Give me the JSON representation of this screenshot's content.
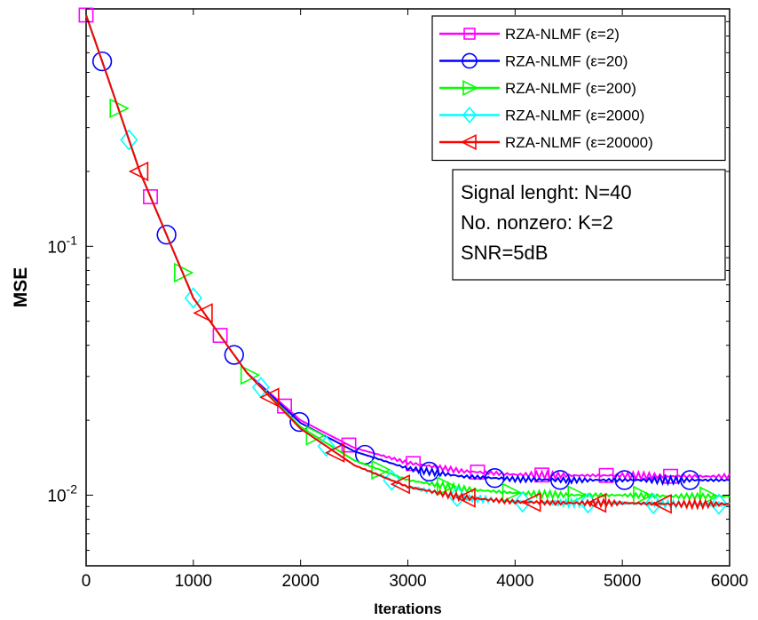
{
  "chart_data": {
    "type": "line",
    "xlabel": "Iterations",
    "ylabel": "MSE",
    "xlim": [
      0,
      6000
    ],
    "ylim": [
      0.0052,
      0.9
    ],
    "yscale": "log",
    "x_ticks": [
      0,
      1000,
      2000,
      3000,
      4000,
      5000,
      6000
    ],
    "x_tick_labels": [
      "0",
      "1000",
      "2000",
      "3000",
      "4000",
      "5000",
      "6000"
    ],
    "y_ticks": [
      {
        "value": 0.1,
        "base": "10",
        "exp": "-1"
      },
      {
        "value": 0.01,
        "base": "10",
        "exp": "-2"
      }
    ],
    "grid": false,
    "legend_position": "top-right",
    "series": [
      {
        "name": "RZA-NLMF (ε=2)",
        "color": "#ff00ff",
        "marker": "square",
        "x": [
          0,
          200,
          500,
          1000,
          1500,
          2000,
          2500,
          3000,
          3500,
          4000,
          4500,
          5000,
          5500,
          6000
        ],
        "y": [
          0.85,
          0.48,
          0.2,
          0.062,
          0.031,
          0.02,
          0.0155,
          0.0135,
          0.0125,
          0.0121,
          0.012,
          0.012,
          0.0119,
          0.0119
        ],
        "marker_x": [
          0,
          600,
          1250,
          1850,
          2450,
          3050,
          3650,
          4250,
          4850,
          5450
        ]
      },
      {
        "name": "RZA-NLMF (ε=20)",
        "color": "#0000ff",
        "marker": "circle",
        "x": [
          0,
          200,
          500,
          1000,
          1500,
          2000,
          2500,
          3000,
          3500,
          4000,
          4500,
          5000,
          5500,
          6000
        ],
        "y": [
          0.85,
          0.48,
          0.2,
          0.062,
          0.031,
          0.0195,
          0.015,
          0.0128,
          0.0119,
          0.0116,
          0.0115,
          0.0115,
          0.0115,
          0.0115
        ],
        "marker_x": [
          150,
          750,
          1380,
          1990,
          2600,
          3200,
          3810,
          4420,
          5020,
          5630
        ]
      },
      {
        "name": "RZA-NLMF (ε=200)",
        "color": "#00ff00",
        "marker": "triangle-right",
        "x": [
          0,
          200,
          500,
          1000,
          1500,
          2000,
          2500,
          3000,
          3500,
          4000,
          4500,
          5000,
          5500,
          6000
        ],
        "y": [
          0.85,
          0.48,
          0.2,
          0.062,
          0.031,
          0.0188,
          0.0138,
          0.0115,
          0.0106,
          0.0102,
          0.01,
          0.01,
          0.0099,
          0.0099
        ],
        "marker_x": [
          300,
          900,
          1520,
          2130,
          2740,
          3350,
          3960,
          4570,
          5180,
          5800
        ]
      },
      {
        "name": "RZA-NLMF (ε=2000)",
        "color": "#00ffff",
        "marker": "diamond",
        "x": [
          0,
          200,
          500,
          1000,
          1500,
          2000,
          2500,
          3000,
          3500,
          4000,
          4500,
          5000,
          5500,
          6000
        ],
        "y": [
          0.85,
          0.48,
          0.2,
          0.062,
          0.031,
          0.0185,
          0.0132,
          0.0108,
          0.0098,
          0.0094,
          0.0093,
          0.0093,
          0.0092,
          0.0092
        ],
        "marker_x": [
          400,
          1000,
          1630,
          2240,
          2850,
          3460,
          4070,
          4680,
          5290,
          5900
        ]
      },
      {
        "name": "RZA-NLMF (ε=20000)",
        "color": "#ff0000",
        "marker": "triangle-left",
        "x": [
          0,
          200,
          500,
          1000,
          1500,
          2000,
          2500,
          3000,
          3500,
          4000,
          4500,
          5000,
          5500,
          6000
        ],
        "y": [
          0.85,
          0.48,
          0.2,
          0.062,
          0.031,
          0.0185,
          0.0132,
          0.0108,
          0.0098,
          0.0094,
          0.0093,
          0.0093,
          0.0092,
          0.0092
        ],
        "marker_x": [
          500,
          1100,
          1720,
          2330,
          2940,
          3550,
          4160,
          4770,
          5380
        ]
      }
    ],
    "annotation": {
      "lines": [
        "Signal lenght: N=40",
        "No. nonzero: K=2",
        "SNR=5dB"
      ]
    }
  }
}
